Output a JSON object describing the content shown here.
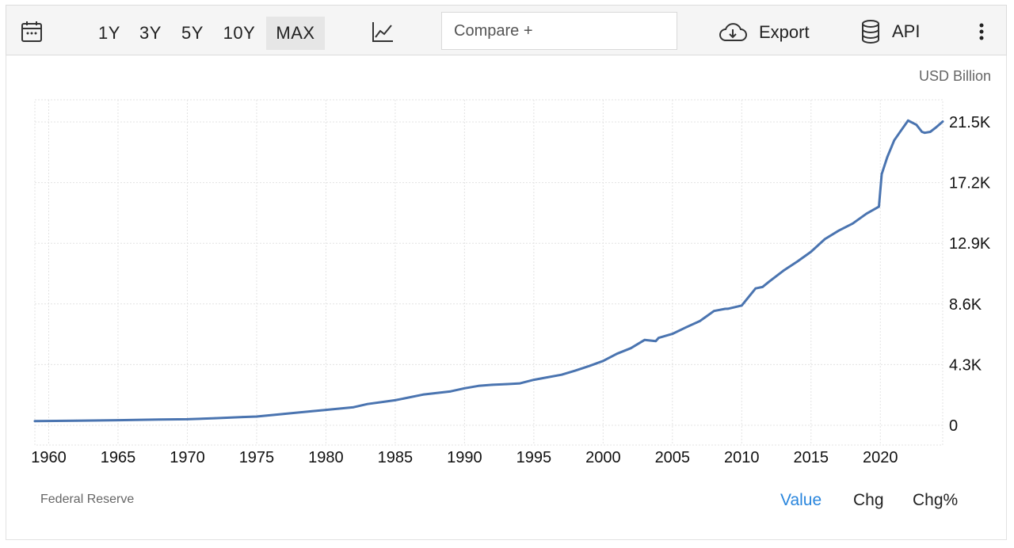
{
  "toolbar": {
    "ranges": [
      "1Y",
      "3Y",
      "5Y",
      "10Y",
      "MAX"
    ],
    "active_range": "MAX",
    "compare_placeholder": "Compare +",
    "export_label": "Export",
    "api_label": "API",
    "icons": [
      "calendar-icon",
      "line-chart-icon",
      "cloud-download-icon",
      "database-icon",
      "more-vertical-icon"
    ]
  },
  "chart": {
    "unit_label": "USD Billion",
    "source": "Federal Reserve",
    "views": [
      "Value",
      "Chg",
      "Chg%"
    ],
    "active_view": "Value",
    "colors": {
      "line": "#4a74b0",
      "grid": "#e3e3e3",
      "active_view": "#2a86dd"
    }
  },
  "chart_data": {
    "type": "line",
    "x_ticks": [
      "1960",
      "1965",
      "1970",
      "1975",
      "1980",
      "1985",
      "1990",
      "1995",
      "2000",
      "2005",
      "2010",
      "2015",
      "2020"
    ],
    "y_ticks": [
      "0",
      "4.3K",
      "8.6K",
      "12.9K",
      "17.2K",
      "21.5K"
    ],
    "ylim": [
      0,
      21500
    ],
    "xlim": [
      1959,
      2024.5
    ],
    "grid": true,
    "y_axis_side": "right",
    "series": [
      {
        "x": [
          1959,
          1962,
          1965,
          1968,
          1970,
          1972,
          1974,
          1975,
          1977,
          1979,
          1980,
          1982,
          1983,
          1985,
          1987,
          1989,
          1990,
          1991,
          1992,
          1993,
          1994,
          1995,
          1996,
          1997,
          1998,
          1999,
          2000,
          2001,
          2002,
          2003,
          2003.8,
          2004,
          2005,
          2006,
          2007,
          2008,
          2008.8,
          2009,
          2010,
          2011,
          2011.5,
          2012,
          2013,
          2014,
          2015,
          2016,
          2017,
          2018,
          2019,
          2019.9,
          2020.1,
          2020.3,
          2020.5,
          2021,
          2021.5,
          2022,
          2022.2,
          2022.6,
          2023,
          2023.2,
          2023.6,
          2024,
          2024.5
        ],
        "y": [
          297,
          323,
          359,
          402,
          429,
          502,
          586,
          620,
          811,
          999,
          1090,
          1280,
          1502,
          1774,
          2170,
          2400,
          2622,
          2788,
          2870,
          2915,
          2970,
          3220,
          3400,
          3580,
          3880,
          4200,
          4560,
          5070,
          5460,
          6050,
          5970,
          6190,
          6480,
          6950,
          7400,
          8100,
          8250,
          8260,
          8490,
          9700,
          9800,
          10200,
          10950,
          11600,
          12300,
          13200,
          13800,
          14300,
          15000,
          15500,
          17800,
          18400,
          19000,
          20200,
          20900,
          21600,
          21500,
          21300,
          20800,
          20730,
          20800,
          21100,
          21530
        ]
      }
    ]
  }
}
